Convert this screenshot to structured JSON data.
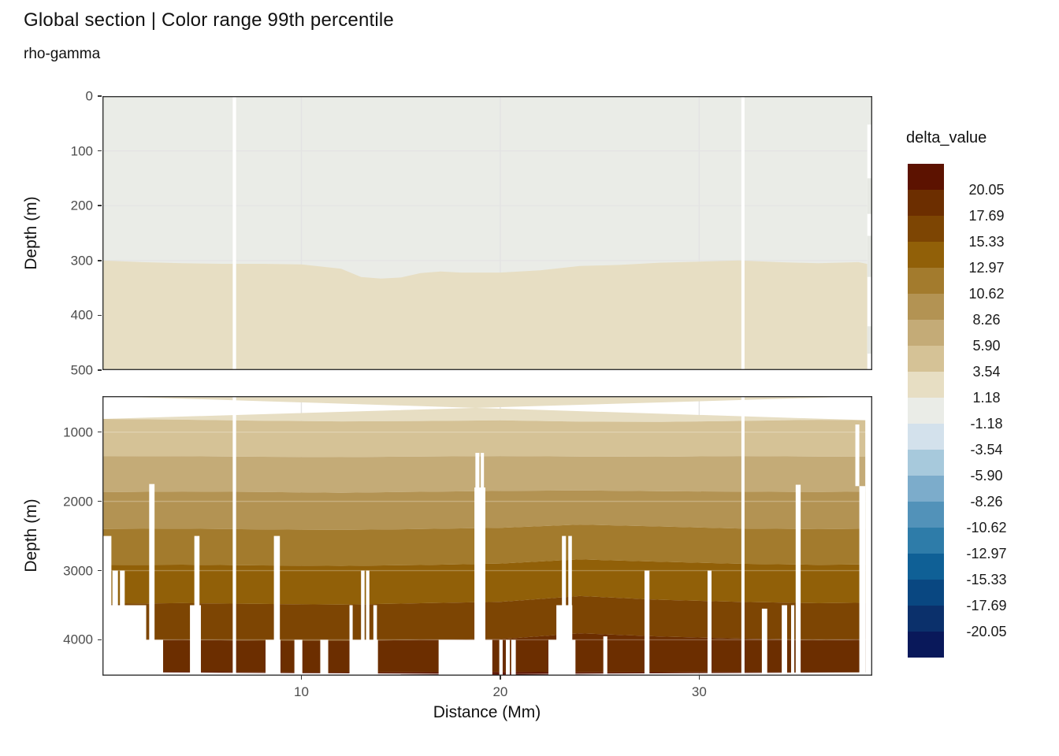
{
  "chart_data": {
    "type": "heatmap",
    "title": "Global section | Color range 99th percentile",
    "subtitle": "rho-gamma",
    "x": {
      "label": "Distance (Mm)",
      "range": [
        0,
        38.7
      ],
      "ticks": [
        10,
        20,
        30
      ]
    },
    "legend": {
      "title": "delta_value",
      "labels": [
        "20.05",
        "17.69",
        "15.33",
        "12.97",
        "10.62",
        "8.26",
        "5.90",
        "3.54",
        "1.18",
        "-1.18",
        "-3.54",
        "-5.90",
        "-8.26",
        "-10.62",
        "-12.97",
        "-15.33",
        "-17.69",
        "-20.05"
      ],
      "colors": [
        "#5c1200",
        "#6c2e00",
        "#7d4503",
        "#916008",
        "#a37b2d",
        "#b39353",
        "#c4ab77",
        "#d5c296",
        "#e7dec3",
        "#eaece7",
        "#d3e1ec",
        "#a7c9dc",
        "#7caccb",
        "#5292b9",
        "#2e7ca9",
        "#0f6096",
        "#094781",
        "#0b306b",
        "#09185a"
      ]
    },
    "colors": {
      "neutral_band": "#eaece7",
      "panel_border": "#333333",
      "gridline": "#e3e3e3",
      "missing_data": "#ffffff",
      "axis_text": "#4d4d4d"
    },
    "panels": [
      {
        "name": "upper",
        "ylabel": "Depth (m)",
        "depth_range": [
          0,
          500
        ],
        "yticks": [
          0,
          100,
          200,
          300,
          400,
          500
        ],
        "surface_boundary": {
          "distances": [
            0,
            2,
            4,
            6,
            8,
            10,
            12,
            13,
            14,
            15,
            16,
            17,
            18,
            20,
            22,
            24,
            26,
            28,
            30,
            32,
            34,
            36,
            38,
            38.7
          ],
          "depths": [
            300,
            303,
            305,
            306,
            306,
            307,
            315,
            330,
            333,
            331,
            323,
            320,
            322,
            322,
            318,
            310,
            308,
            304,
            302,
            300,
            303,
            305,
            303,
            308
          ],
          "upper_color": "#eaece7",
          "lower_color": "#e7dec3"
        },
        "gaps": [
          [
            6.55,
            6.72,
            0
          ],
          [
            32.12,
            32.28,
            0
          ],
          [
            38.45,
            38.7,
            52
          ]
        ],
        "patches": [
          {
            "d0": 38.45,
            "d1": 38.7,
            "top": 150,
            "bottom": 215,
            "color": "#e6e8e3"
          },
          {
            "d0": 38.45,
            "d1": 38.7,
            "top": 255,
            "bottom": 330,
            "color": "#e6e8e3"
          },
          {
            "d0": 38.45,
            "d1": 38.7,
            "top": 420,
            "bottom": 470,
            "color": "#e6e8e3"
          }
        ]
      },
      {
        "name": "lower",
        "ylabel": "Depth (m)",
        "depth_range": [
          480,
          4518
        ],
        "yticks": [
          1000,
          2000,
          3000,
          4000
        ],
        "band_colors": [
          "#e7dec3",
          "#d5c296",
          "#c4ab77",
          "#b39353",
          "#a37b2d",
          "#916008",
          "#7d4503",
          "#6c2e00",
          "#5c1200"
        ],
        "boundary_distances": [
          0,
          4,
          8,
          12,
          16,
          20,
          24,
          28,
          32,
          36,
          38.7
        ],
        "boundaries": [
          [
            810,
            820,
            835,
            845,
            840,
            830,
            848,
            852,
            838,
            822,
            830
          ],
          [
            1350,
            1348,
            1356,
            1362,
            1352,
            1346,
            1352,
            1356,
            1346,
            1352,
            1356
          ],
          [
            1868,
            1858,
            1864,
            1876,
            1862,
            1850,
            1842,
            1854,
            1860,
            1866,
            1860
          ],
          [
            2400,
            2394,
            2406,
            2412,
            2400,
            2382,
            2335,
            2362,
            2392,
            2402,
            2396
          ],
          [
            2920,
            2914,
            2926,
            2932,
            2920,
            2898,
            2838,
            2872,
            2902,
            2916,
            2910
          ],
          [
            3480,
            3470,
            3482,
            3492,
            3472,
            3452,
            3368,
            3422,
            3452,
            3472,
            3462
          ],
          [
            4008,
            4000,
            4012,
            4016,
            4000,
            3990,
            3906,
            3952,
            3982,
            4002,
            3992
          ],
          [
            4468,
            4464,
            4470,
            4474,
            4468,
            4464,
            4470,
            4472,
            4468,
            4470,
            4470
          ]
        ],
        "gaps": [
          [
            0,
            0.45,
            2500
          ],
          [
            0.5,
            0.78,
            3000
          ],
          [
            0.88,
            1.12,
            3000
          ],
          [
            0.35,
            2.2,
            3500
          ],
          [
            2.35,
            2.62,
            1750
          ],
          [
            0,
            3.05,
            4000
          ],
          [
            4.62,
            4.88,
            2500
          ],
          [
            4.4,
            4.95,
            3500
          ],
          [
            6.55,
            6.72,
            480
          ],
          [
            8.62,
            8.92,
            2500
          ],
          [
            8.2,
            8.95,
            4000
          ],
          [
            9.65,
            10.05,
            4000
          ],
          [
            10.95,
            11.35,
            4000
          ],
          [
            12.42,
            12.58,
            3500
          ],
          [
            13.0,
            13.18,
            3000
          ],
          [
            13.25,
            13.42,
            3000
          ],
          [
            13.62,
            13.8,
            3500
          ],
          [
            12.45,
            13.85,
            4000
          ],
          [
            16.9,
            19.6,
            4000
          ],
          [
            18.75,
            18.95,
            1300
          ],
          [
            19.02,
            19.18,
            1300
          ],
          [
            18.7,
            19.25,
            1800
          ],
          [
            19.95,
            20.12,
            4000
          ],
          [
            20.28,
            20.48,
            4000
          ],
          [
            20.55,
            20.78,
            4000
          ],
          [
            23.1,
            23.3,
            2500
          ],
          [
            23.42,
            23.6,
            2500
          ],
          [
            22.82,
            23.62,
            3500
          ],
          [
            22.42,
            23.78,
            4000
          ],
          [
            25.18,
            25.38,
            3950
          ],
          [
            27.25,
            27.5,
            3000
          ],
          [
            30.42,
            30.62,
            3000
          ],
          [
            32.12,
            32.28,
            480
          ],
          [
            33.15,
            33.42,
            3550
          ],
          [
            34.15,
            34.42,
            3500
          ],
          [
            34.62,
            34.78,
            3500
          ],
          [
            34.85,
            35.1,
            1760
          ],
          [
            37.85,
            38.05,
            890,
            1780
          ],
          [
            38.05,
            38.35,
            1780
          ],
          [
            38.35,
            38.7,
            480
          ]
        ]
      }
    ]
  }
}
